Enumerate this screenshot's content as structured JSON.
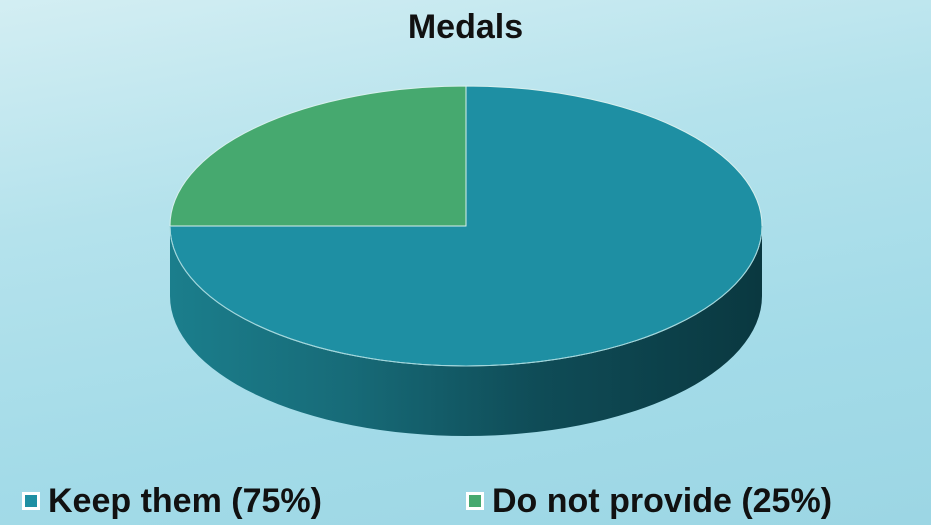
{
  "chart_data": {
    "type": "pie",
    "title": "Medals",
    "labels": [
      "Keep them (75%)",
      "Do not provide (25%)"
    ],
    "values": [
      75,
      25
    ],
    "colors": [
      "#1e8fa3",
      "#46a96f"
    ],
    "legend_position": "bottom",
    "style": "3d"
  }
}
